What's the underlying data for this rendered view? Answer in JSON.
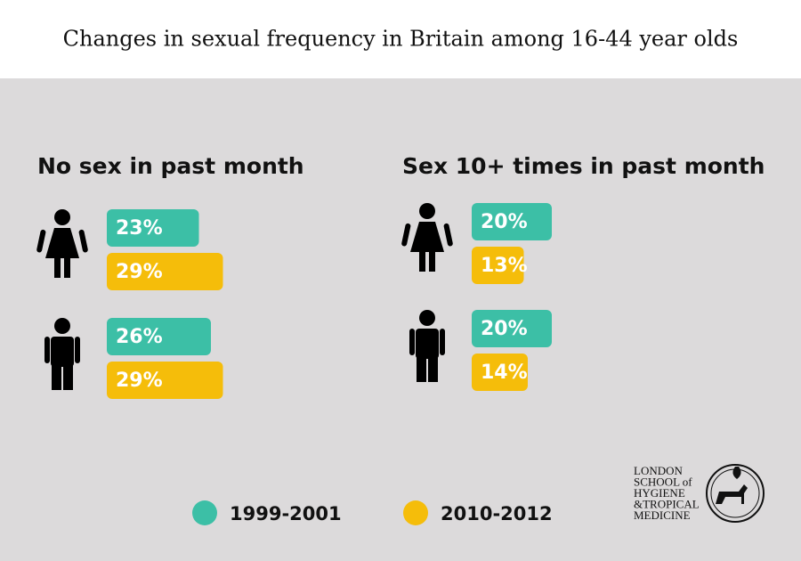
{
  "title": "Changes in sexual frequency in Britain among 16-44 year olds",
  "legend": [
    {
      "name": "1999-2001",
      "color": "#3cbfa6"
    },
    {
      "name": "2010-2012",
      "color": "#f5bd0a"
    }
  ],
  "logo": [
    "LONDON",
    "SCHOOL of",
    "HYGIENE",
    "&TROPICAL",
    "MEDICINE"
  ],
  "chart_data": [
    {
      "type": "bar",
      "title": "No sex in past month",
      "categories": [
        null,
        null
      ],
      "series": [
        {
          "values": [
            23,
            26
          ],
          "value_labels": [
            "23%",
            "26%"
          ]
        },
        {
          "values": [
            29,
            29
          ],
          "value_labels": [
            "29%",
            "29%"
          ]
        }
      ]
    },
    {
      "type": "bar",
      "title": "Sex 10+ times in past month",
      "categories": [
        null,
        null
      ],
      "series": [
        {
          "values": [
            20,
            20
          ],
          "value_labels": [
            "20%",
            "20%"
          ]
        },
        {
          "values": [
            13,
            14
          ],
          "value_labels": [
            "13%",
            "14%"
          ]
        }
      ]
    }
  ]
}
